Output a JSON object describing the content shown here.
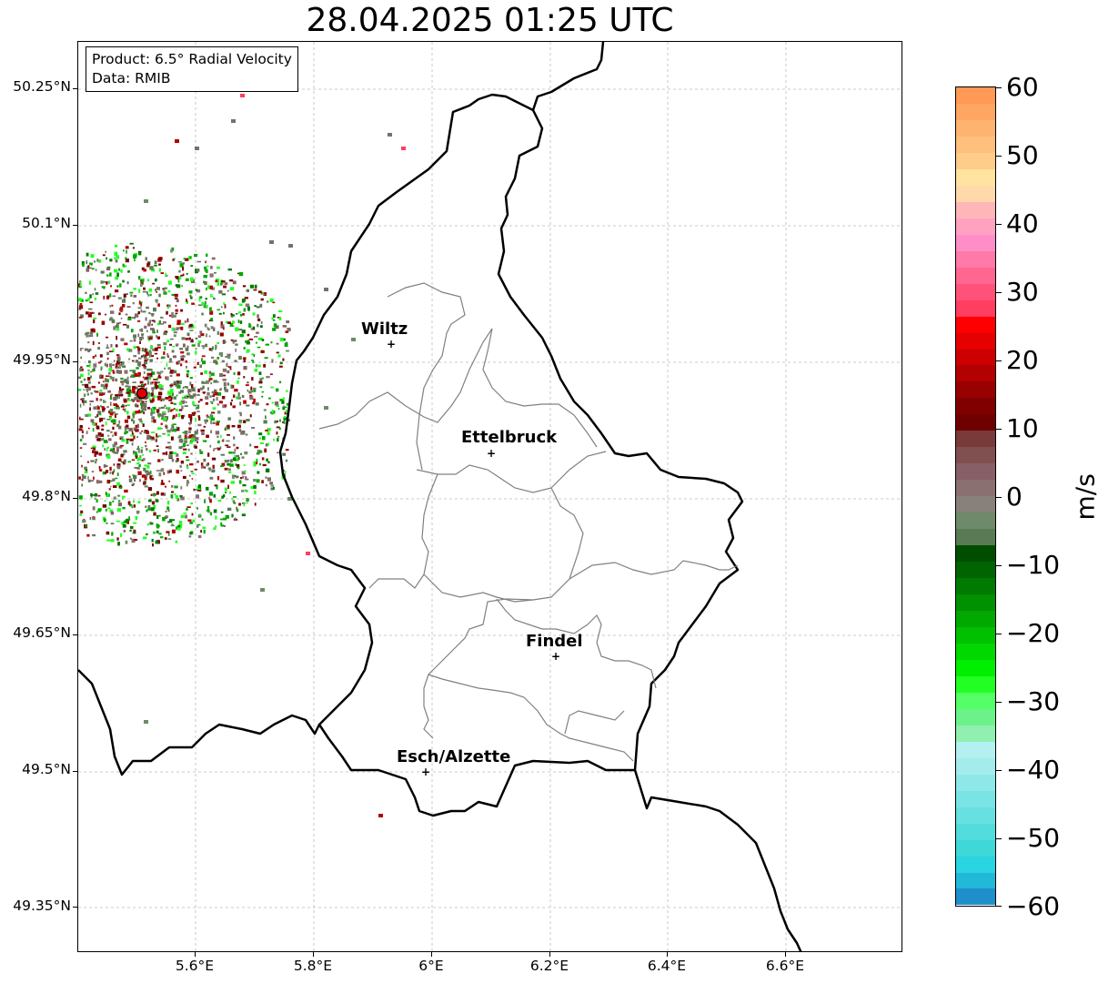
{
  "title": "28.04.2025 01:25 UTC",
  "info_box": {
    "product": "Product: 6.5° Radial Velocity",
    "data": "Data: RMIB"
  },
  "map": {
    "lat_labels": [
      "50.25°N",
      "50.1°N",
      "49.95°N",
      "49.8°N",
      "49.65°N",
      "49.5°N",
      "49.35°N"
    ],
    "lon_labels": [
      "5.6°E",
      "5.8°E",
      "6°E",
      "6.2°E",
      "6.4°E",
      "6.6°E"
    ],
    "cities": [
      {
        "name": "Wiltz"
      },
      {
        "name": "Ettelbruck"
      },
      {
        "name": "Findel"
      },
      {
        "name": "Esch/Alzette"
      }
    ],
    "radar_site_color": "#e00000"
  },
  "colorbar": {
    "unit": "m/s",
    "ticks": [
      "60",
      "50",
      "40",
      "30",
      "20",
      "10",
      "0",
      "−10",
      "−20",
      "−30",
      "−40",
      "−50",
      "−60"
    ],
    "colors_top_to_bottom": [
      "#ff9955",
      "#ffa663",
      "#ffb370",
      "#ffbf7d",
      "#ffcc8a",
      "#ffe39e",
      "#ffd9aa",
      "#ffb6b8",
      "#ffa2c0",
      "#ff8ec8",
      "#ff7aa8",
      "#ff6690",
      "#ff5278",
      "#ff3e60",
      "#ff0000",
      "#e60000",
      "#cc0000",
      "#b30000",
      "#990000",
      "#800000",
      "#6e0000",
      "#7a3a3a",
      "#805050",
      "#866066",
      "#8a7070",
      "#88807a",
      "#6f8a6a",
      "#5a7a55",
      "#004d00",
      "#006400",
      "#007a00",
      "#009000",
      "#00a800",
      "#00c000",
      "#00d800",
      "#00ee00",
      "#22ff22",
      "#55ff66",
      "#6cf28a",
      "#90f0b0",
      "#b4f0f0",
      "#a4ecec",
      "#8ee8e8",
      "#7ae4e4",
      "#66e0e0",
      "#52dcdc",
      "#3ed8d8",
      "#2ad4e0",
      "#22b8d8",
      "#1f8fcc"
    ]
  }
}
